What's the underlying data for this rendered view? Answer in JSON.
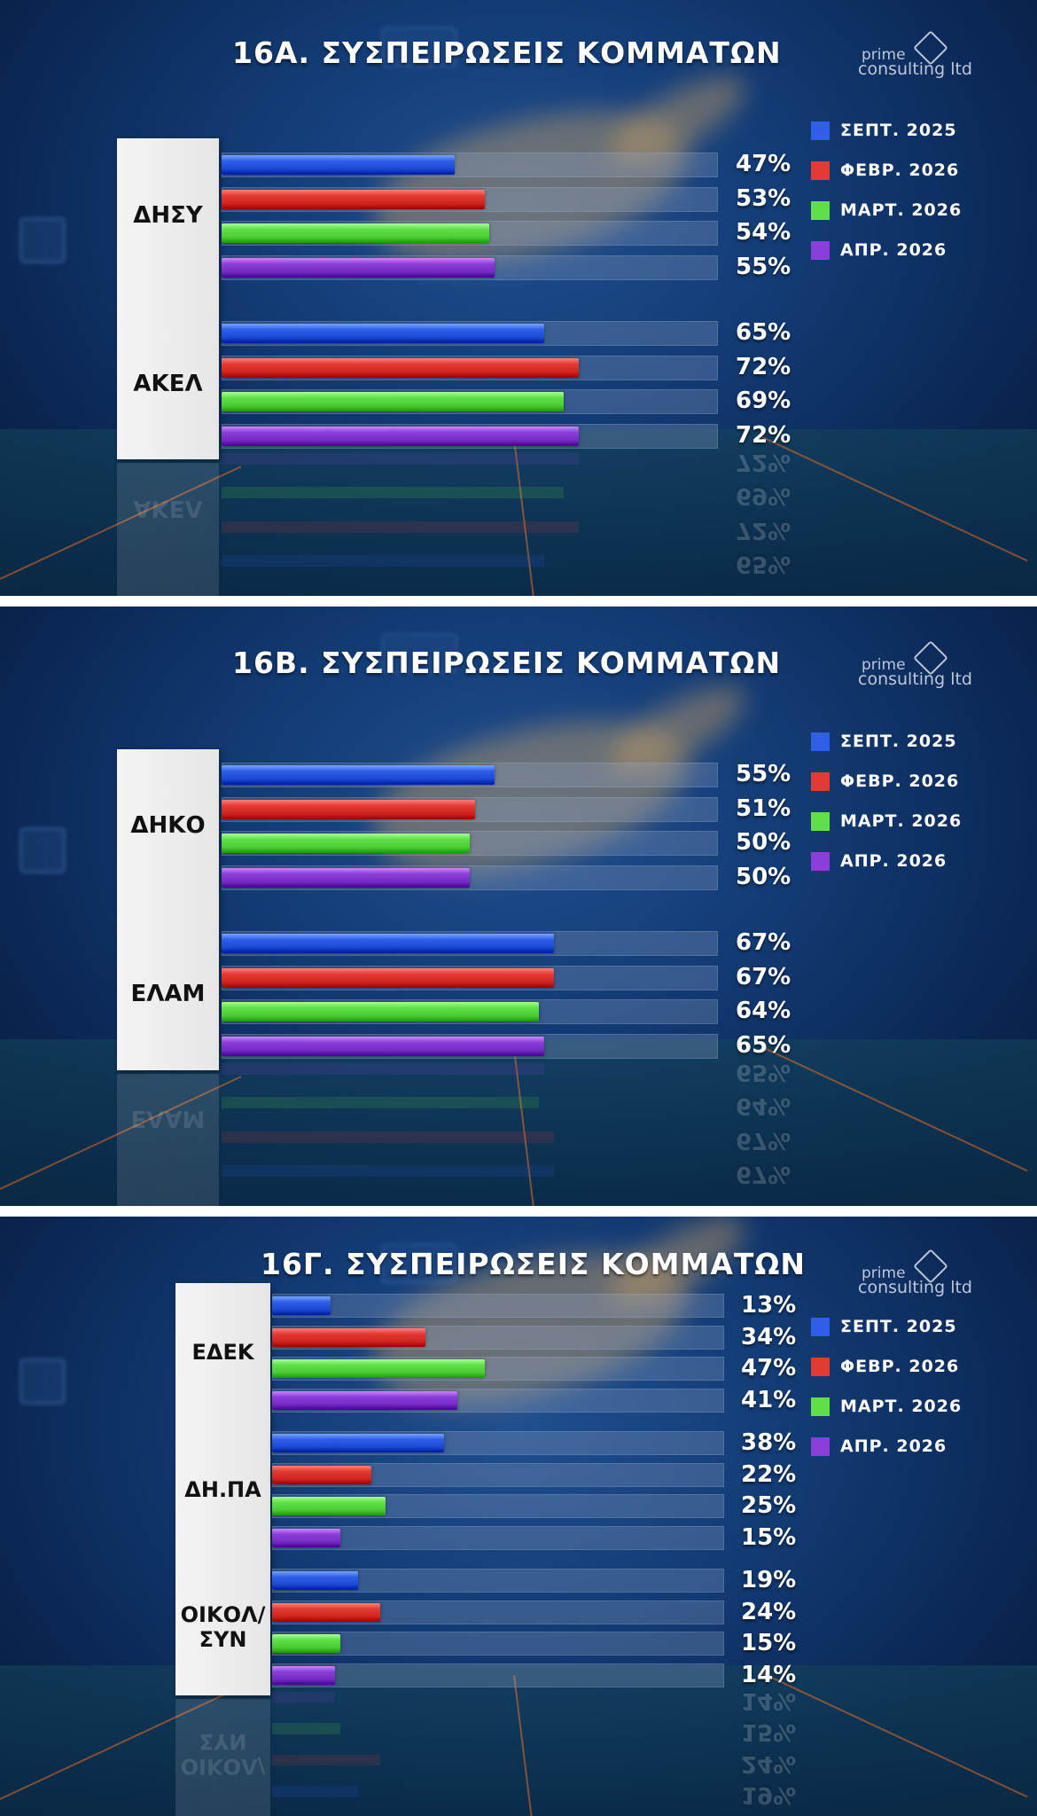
{
  "colors": {
    "series": [
      "#2f5fe8",
      "#e43a34",
      "#5fe04a",
      "#8a3fd8"
    ]
  },
  "legend": [
    "ΣΕΠΤ. 2025",
    "ΦΕΒΡ. 2026",
    "ΜΑΡΤ. 2026",
    "ΑΠΡ. 2026"
  ],
  "logo": {
    "line1": "prime",
    "line2": "consulting ltd",
    "icon": "prime-consulting-logo-icon"
  },
  "chart_data": [
    {
      "type": "bar",
      "title": "16Α. ΣΥΣΠΕΙΡΩΣΕΙΣ ΚΟΜΜΑΤΩΝ",
      "series_names": [
        "ΣΕΠΤ. 2025",
        "ΦΕΒΡ. 2026",
        "ΜΑΡΤ. 2026",
        "ΑΠΡ. 2026"
      ],
      "xlim": [
        0,
        100
      ],
      "groups": [
        {
          "name": "ΔΗΣΥ",
          "values": [
            47,
            53,
            54,
            55
          ],
          "labels": [
            "47%",
            "53%",
            "54%",
            "55%"
          ]
        },
        {
          "name": "ΑΚΕΛ",
          "values": [
            65,
            72,
            69,
            72
          ],
          "labels": [
            "65%",
            "72%",
            "69%",
            "72%"
          ]
        }
      ]
    },
    {
      "type": "bar",
      "title": "16Β. ΣΥΣΠΕΙΡΩΣΕΙΣ ΚΟΜΜΑΤΩΝ",
      "series_names": [
        "ΣΕΠΤ. 2025",
        "ΦΕΒΡ. 2026",
        "ΜΑΡΤ. 2026",
        "ΑΠΡ. 2026"
      ],
      "xlim": [
        0,
        100
      ],
      "groups": [
        {
          "name": "ΔΗΚΟ",
          "values": [
            55,
            51,
            50,
            50
          ],
          "labels": [
            "55%",
            "51%",
            "50%",
            "50%"
          ]
        },
        {
          "name": "ΕΛΑΜ",
          "values": [
            67,
            67,
            64,
            65
          ],
          "labels": [
            "67%",
            "67%",
            "64%",
            "65%"
          ]
        }
      ]
    },
    {
      "type": "bar",
      "title": "16Γ. ΣΥΣΠΕΙΡΩΣΕΙΣ ΚΟΜΜΑΤΩΝ",
      "series_names": [
        "ΣΕΠΤ. 2025",
        "ΦΕΒΡ. 2026",
        "ΜΑΡΤ. 2026",
        "ΑΠΡ. 2026"
      ],
      "xlim": [
        0,
        100
      ],
      "groups": [
        {
          "name": "ΕΔΕΚ",
          "values": [
            13,
            34,
            47,
            41
          ],
          "labels": [
            "13%",
            "34%",
            "47%",
            "41%"
          ]
        },
        {
          "name": "ΔΗ.ΠΑ",
          "values": [
            38,
            22,
            25,
            15
          ],
          "labels": [
            "38%",
            "22%",
            "25%",
            "15%"
          ]
        },
        {
          "name": "ΟΙΚΟΛ/\nΣΥΝ",
          "values": [
            19,
            24,
            15,
            14
          ],
          "labels": [
            "19%",
            "24%",
            "15%",
            "14%"
          ]
        }
      ]
    }
  ]
}
